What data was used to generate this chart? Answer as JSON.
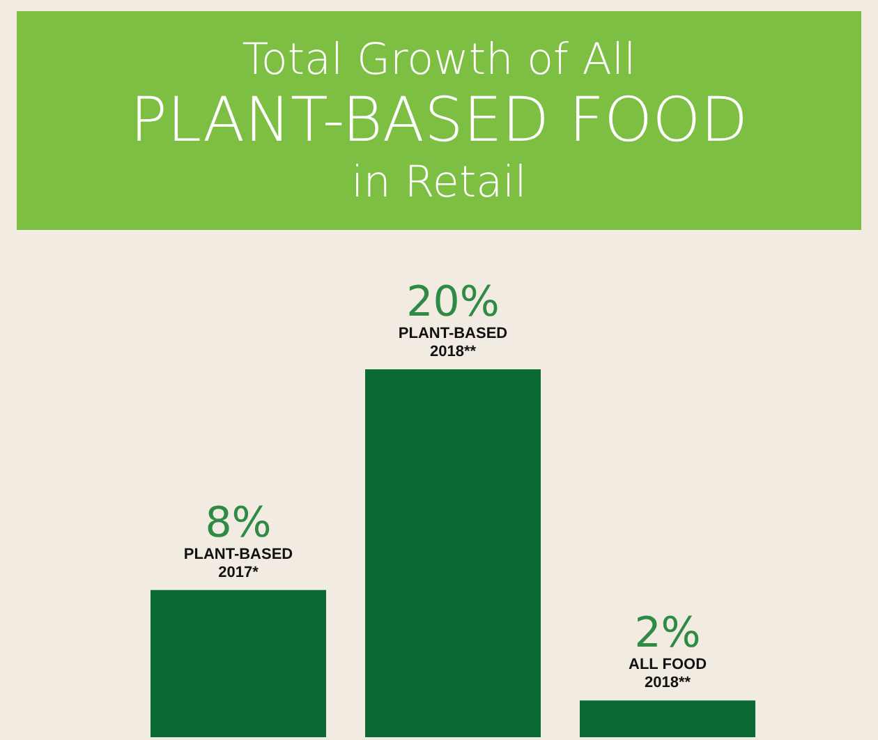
{
  "chart_data": {
    "type": "bar",
    "title": "Total Growth of All\nPLANT-BASED FOOD\nin Retail",
    "categories": [
      "PLANT-BASED 2017*",
      "PLANT-BASED 2018**",
      "ALL FOOD 2018**"
    ],
    "values": [
      8,
      20,
      2
    ],
    "value_labels": [
      "8%",
      "20%",
      "2%"
    ],
    "color": "#0b6a34"
  }
}
